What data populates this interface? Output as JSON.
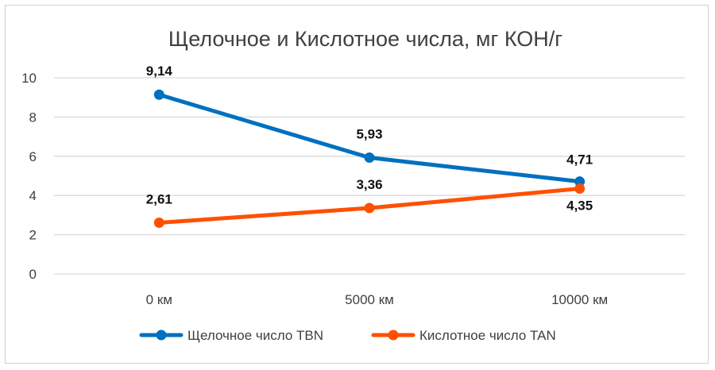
{
  "chart_data": {
    "type": "line",
    "title": "Щелочное и Кислотное числа, мг КОН/г",
    "categories": [
      "0 км",
      "5000 км",
      "10000 км"
    ],
    "ylim": [
      0,
      10
    ],
    "yticks": [
      0,
      2,
      4,
      6,
      8,
      10
    ],
    "grid": true,
    "legend": "bottom",
    "series": [
      {
        "name": "Щелочное число TBN",
        "color": "#0070C0",
        "values": [
          9.14,
          5.93,
          4.71
        ],
        "labels": [
          "9,14",
          "5,93",
          "4,71"
        ]
      },
      {
        "name": "Кислотное число TAN",
        "color": "#FF5000",
        "values": [
          2.61,
          3.36,
          4.35
        ],
        "labels": [
          "2,61",
          "3,36",
          "4,35"
        ]
      }
    ]
  }
}
